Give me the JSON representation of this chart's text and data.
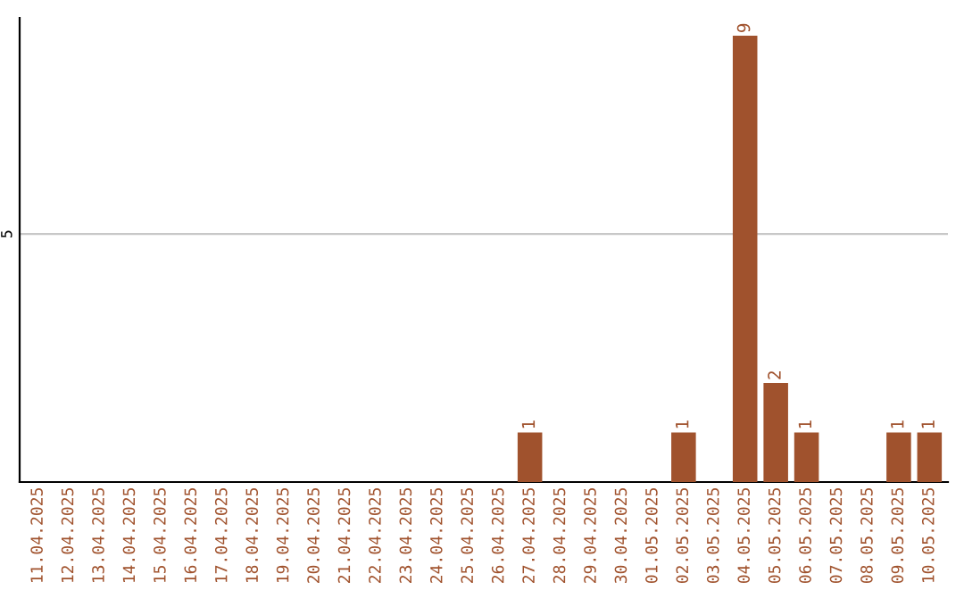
{
  "chart_data": {
    "type": "bar",
    "data_labels": true,
    "categories": [
      "11.04.2025",
      "12.04.2025",
      "13.04.2025",
      "14.04.2025",
      "15.04.2025",
      "16.04.2025",
      "17.04.2025",
      "18.04.2025",
      "19.04.2025",
      "20.04.2025",
      "21.04.2025",
      "22.04.2025",
      "23.04.2025",
      "24.04.2025",
      "25.04.2025",
      "26.04.2025",
      "27.04.2025",
      "28.04.2025",
      "29.04.2025",
      "30.04.2025",
      "01.05.2025",
      "02.05.2025",
      "03.05.2025",
      "04.05.2025",
      "05.05.2025",
      "06.05.2025",
      "07.05.2025",
      "08.05.2025",
      "09.05.2025",
      "10.05.2025"
    ],
    "values": [
      null,
      null,
      null,
      null,
      null,
      null,
      null,
      null,
      null,
      null,
      null,
      null,
      null,
      null,
      null,
      null,
      1,
      null,
      null,
      null,
      null,
      1,
      null,
      9,
      2,
      1,
      null,
      null,
      1,
      1
    ],
    "color": "#a0522d",
    "ref_lines": [
      {
        "axis": "y",
        "value": 5,
        "label": "5",
        "color": "#c8c8c8"
      }
    ]
  }
}
